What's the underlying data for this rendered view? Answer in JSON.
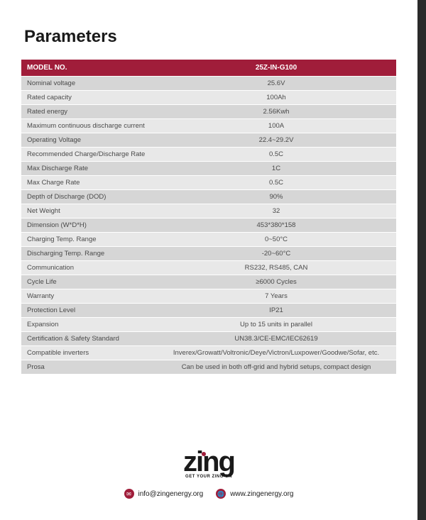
{
  "heading": "Parameters",
  "table": {
    "header_left": "MODEL NO.",
    "header_right": "25Z-IN-G100",
    "header_bg": "#a01d3a",
    "header_color": "#ffffff",
    "row_bg_odd": "#d6d6d6",
    "row_bg_even": "#e8e8e8",
    "text_color": "#4a4a4a",
    "rows": [
      {
        "label": "Nominal voltage",
        "value": "25.6V"
      },
      {
        "label": "Rated capacity",
        "value": "100Ah"
      },
      {
        "label": "Rated energy",
        "value": "2.56Kwh"
      },
      {
        "label": "Maximum continuous discharge current",
        "value": "100A"
      },
      {
        "label": "Operating Voltage",
        "value": "22.4~29.2V"
      },
      {
        "label": "Recommended Charge/Discharge Rate",
        "value": "0.5C"
      },
      {
        "label": "Max Discharge Rate",
        "value": "1C"
      },
      {
        "label": "Max Charge Rate",
        "value": "0.5C"
      },
      {
        "label": "Depth of Discharge (DOD)",
        "value": "90%"
      },
      {
        "label": "Net Weight",
        "value": "32"
      },
      {
        "label": "Dimension (W*D*H)",
        "value": "453*380*158"
      },
      {
        "label": "Charging Temp. Range",
        "value": "0~50°C"
      },
      {
        "label": "Discharging Temp. Range",
        "value": "-20~60°C"
      },
      {
        "label": "Communication",
        "value": "RS232, RS485, CAN"
      },
      {
        "label": "Cycle Life",
        "value": "≥6000 Cycles"
      },
      {
        "label": "Warranty",
        "value": "7 Years"
      },
      {
        "label": "Protection Level",
        "value": "IP21"
      },
      {
        "label": "Expansion",
        "value": "Up to 15 units in parallel"
      },
      {
        "label": "Certification & Safety Standard",
        "value": "UN38.3/CE-EMC/IEC62619"
      },
      {
        "label": "Compatible inverters",
        "value": "Inverex/Growatt/Voltronic/Deye/Victron/Luxpower/Goodwe/Sofar, etc."
      },
      {
        "label": "Prosa",
        "value": "Can be used in both off-grid and hybrid setups, compact design"
      }
    ]
  },
  "footer": {
    "logo_text": "zing",
    "tagline": "GET YOUR ZING ON",
    "accent_color": "#a01d3a",
    "email": "info@zingenergy.org",
    "website": "www.zingenergy.org"
  }
}
